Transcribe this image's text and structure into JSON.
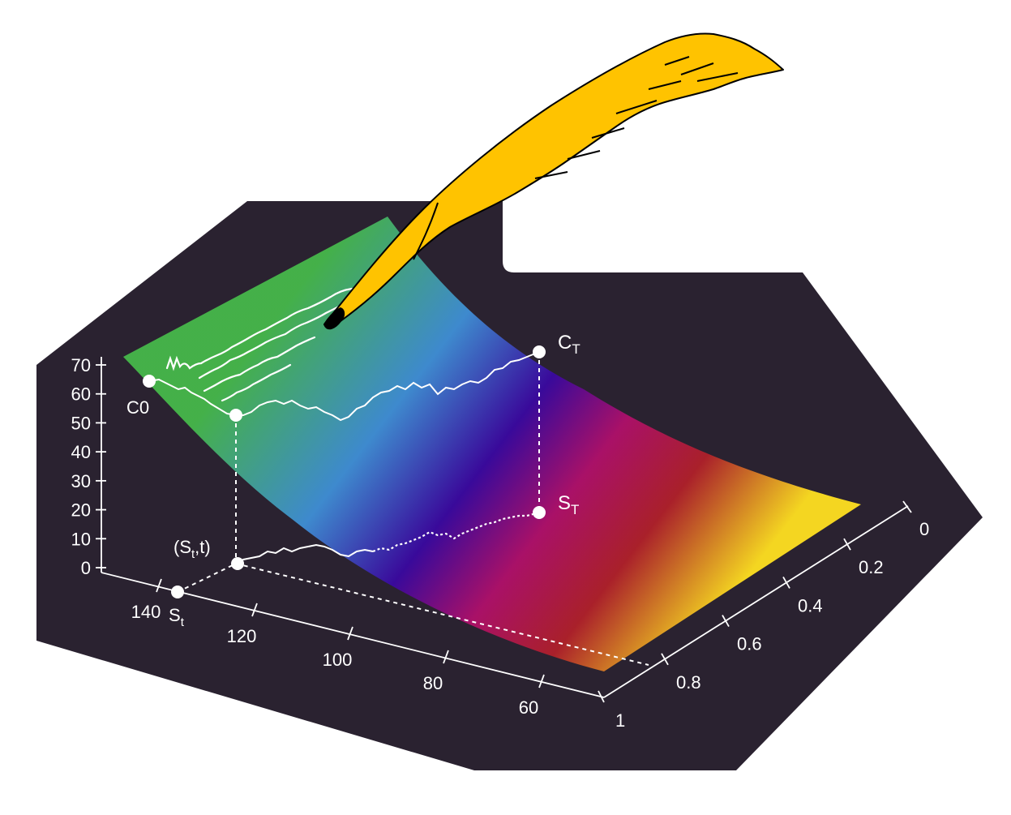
{
  "chart_data": {
    "type": "surface",
    "surface_colors": [
      "#46b84a",
      "#3f8fd6",
      "#3a08a0",
      "#b0106a",
      "#b0202a",
      "#ffe020"
    ],
    "axes": {
      "value": {
        "ticks": [
          0,
          10,
          20,
          30,
          40,
          50,
          60,
          70
        ],
        "range": [
          0,
          70
        ]
      },
      "price": {
        "ticks": [
          140,
          120,
          100,
          80,
          60
        ]
      },
      "time": {
        "ticks": [
          0,
          0.2,
          0.4,
          0.6,
          0.8,
          1
        ]
      }
    },
    "labels": {
      "c0": "C0",
      "ct_main": "C",
      "ct_sub": "T",
      "st_axis_main": "S",
      "st_axis_sub": "t",
      "st_point_open": "(S",
      "st_point_sub": "t",
      "st_point_close": ",t)",
      "sT_main": "S",
      "sT_sub": "T"
    },
    "points": {
      "C0": {
        "value": 63
      },
      "St_value": {
        "value": 52
      },
      "CT": {
        "value": 74
      },
      "ST": {
        "value": 18
      }
    },
    "axis_line_color": "#ffffff",
    "background_color": "#2a2230",
    "quill_color": "#ffc300"
  }
}
